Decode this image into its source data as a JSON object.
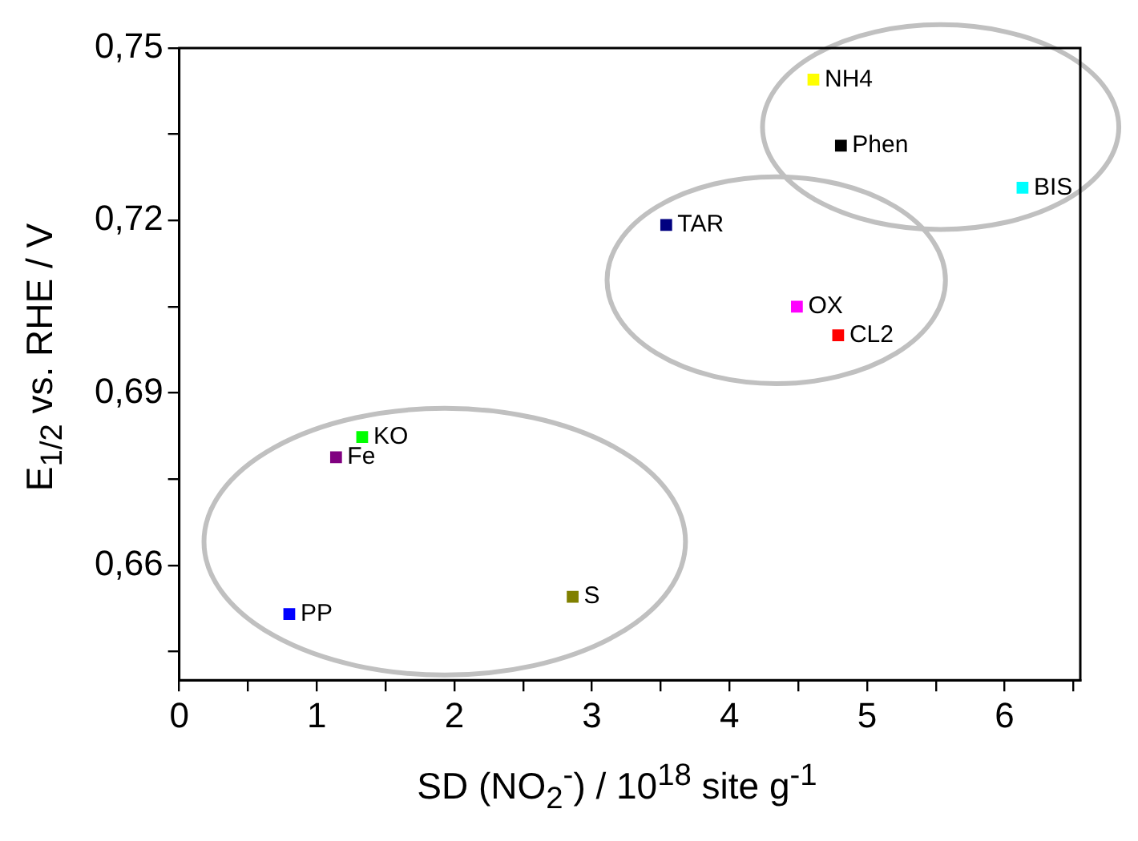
{
  "chart_data": {
    "type": "scatter",
    "xlabel": "SD (NO$_{2}$$^{-}$) / 10$^{18}$ site g$^{-1}$",
    "ylabel": "E$_{1/2}$ vs. RHE / V",
    "marker": "square",
    "grid": false,
    "legend": false,
    "xlim": [
      0,
      6.55
    ],
    "ylim": [
      0.64,
      0.75
    ],
    "xticks": [
      0,
      {
        "value": 0.5,
        "label": null
      },
      1,
      {
        "value": 1.5,
        "label": null
      },
      2,
      {
        "value": 2.5,
        "label": null
      },
      3,
      {
        "value": 3.5,
        "label": null
      },
      4,
      {
        "value": 4.5,
        "label": null
      },
      5,
      {
        "value": 5.5,
        "label": null
      },
      6,
      {
        "value": 6.5,
        "label": null
      }
    ],
    "yticks": [
      {
        "value": 0.645,
        "label": null
      },
      {
        "value": 0.66,
        "label": "0,66"
      },
      {
        "value": 0.675,
        "label": null
      },
      {
        "value": 0.69,
        "label": "0,69"
      },
      {
        "value": 0.705,
        "label": null
      },
      {
        "value": 0.72,
        "label": "0,72"
      },
      {
        "value": 0.735,
        "label": null
      },
      {
        "value": 0.75,
        "label": "0,75"
      }
    ],
    "series": [
      {
        "name": "NH4",
        "color": "#ffff00",
        "x": [
          4.61
        ],
        "values": [
          0.7445
        ]
      },
      {
        "name": "Phen",
        "color": "#000000",
        "x": [
          4.81
        ],
        "values": [
          0.733
        ]
      },
      {
        "name": "BIS",
        "color": "#00ffff",
        "x": [
          6.13
        ],
        "values": [
          0.7257
        ]
      },
      {
        "name": "TAR",
        "color": "#000080",
        "x": [
          3.54
        ],
        "values": [
          0.7192
        ]
      },
      {
        "name": "OX",
        "color": "#ff00ff",
        "x": [
          4.49
        ],
        "values": [
          0.705
        ]
      },
      {
        "name": "CL2",
        "color": "#ff0000",
        "x": [
          4.79
        ],
        "values": [
          0.7
        ]
      },
      {
        "name": "KO",
        "color": "#00ff00",
        "x": [
          1.33
        ],
        "values": [
          0.6823
        ]
      },
      {
        "name": "Fe",
        "color": "#800080",
        "x": [
          1.14
        ],
        "values": [
          0.6788
        ]
      },
      {
        "name": "PP",
        "color": "#0000ff",
        "x": [
          0.8
        ],
        "values": [
          0.6515
        ]
      },
      {
        "name": "S",
        "color": "#808000",
        "x": [
          2.86
        ],
        "values": [
          0.6545
        ]
      }
    ]
  }
}
